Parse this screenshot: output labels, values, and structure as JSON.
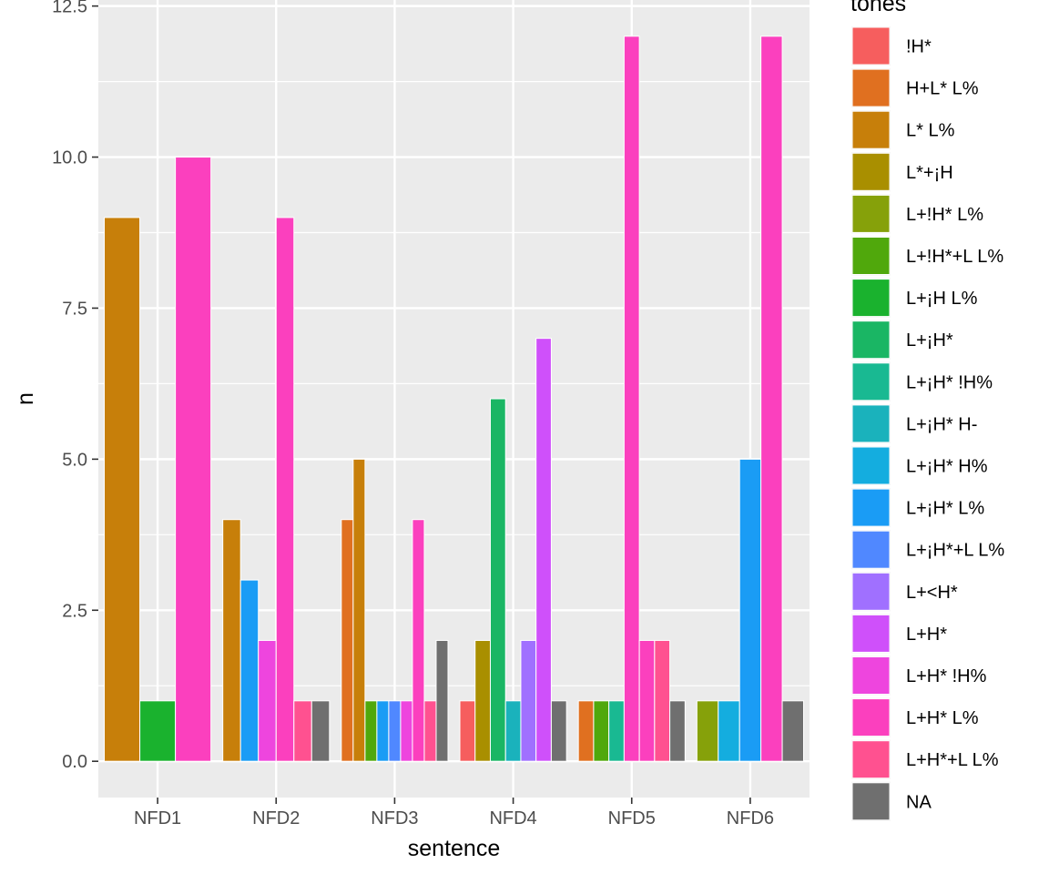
{
  "chart_data": {
    "type": "bar",
    "xlabel": "sentence",
    "ylabel": "n",
    "ylim": [
      -0.6,
      12.6
    ],
    "yticks": [
      0,
      2.5,
      5,
      7.5,
      10,
      12.5
    ],
    "ytick_labels": [
      "0.0",
      "2.5",
      "5.0",
      "7.5",
      "10.0",
      "12.5"
    ],
    "grid": true,
    "legend": {
      "title": "tones",
      "placement": "right",
      "entries": [
        {
          "name": "!H*",
          "color": "#F8766D"
        },
        {
          "name": "H+L* L%",
          "color": "#E58700"
        },
        {
          "name": "L* L%",
          "color": "#C99800"
        },
        {
          "name": "L*+¡H",
          "color": "#A3A500"
        },
        {
          "name": "L+!H* L%",
          "color": "#6BB100"
        },
        {
          "name": "L+!H*+L L%",
          "color": "#00BA38"
        },
        {
          "name": "L+¡H L%",
          "color": "#00BF7D"
        },
        {
          "name": "L+¡H*",
          "color": "#00C0AF"
        },
        {
          "name": "L+¡H* !H%",
          "color": "#00BCD8"
        },
        {
          "name": "L+¡H* H-",
          "color": "#00B0F6"
        },
        {
          "name": "L+¡H* H%",
          "color": "#619CFF"
        },
        {
          "name": "L+¡H* L%",
          "color": "#B983FF"
        },
        {
          "name": "L+¡H*+L L%",
          "color": "#E76BF3"
        },
        {
          "name": "L+<H*",
          "color": "#FD61D1"
        },
        {
          "name": "L+H*",
          "color": "#FF67A4"
        },
        {
          "name": "L+H* !H%",
          "color": "#FF6C91"
        },
        {
          "name": "L+H* L%",
          "color": "#FF7A7A"
        },
        {
          "name": "L+H*+L L%",
          "color": "#E0529B"
        },
        {
          "name": "NA",
          "color": "#707070"
        }
      ]
    },
    "categories": [
      "NFD1",
      "NFD2",
      "NFD3",
      "NFD4",
      "NFD5",
      "NFD6"
    ],
    "groups": [
      {
        "category": "NFD1",
        "bars": [
          {
            "tone": "L* L%",
            "value": 9,
            "color": "#C77F0A"
          },
          {
            "tone": "L+¡H L%",
            "value": 1,
            "color": "#1AB22E"
          },
          {
            "tone": "L+H* L%",
            "value": 10,
            "color": "#FB40BE"
          }
        ]
      },
      {
        "category": "NFD2",
        "bars": [
          {
            "tone": "L* L%",
            "value": 4,
            "color": "#C77F0A"
          },
          {
            "tone": "L+¡H* L%",
            "value": 3,
            "color": "#1A9CF5"
          },
          {
            "tone": "L+H* !H%",
            "value": 2,
            "color": "#EE45DE"
          },
          {
            "tone": "L+H* L%",
            "value": 9,
            "color": "#FB40BE"
          },
          {
            "tone": "L+H*+L L%",
            "value": 1,
            "color": "#FF5190"
          },
          {
            "tone": "NA",
            "value": 1,
            "color": "#6F6F6F"
          }
        ]
      },
      {
        "category": "NFD3",
        "bars": [
          {
            "tone": "H+L* L%",
            "value": 4,
            "color": "#E07020"
          },
          {
            "tone": "L* L%",
            "value": 5,
            "color": "#C77F0A"
          },
          {
            "tone": "L+!H*+L L%",
            "value": 1,
            "color": "#50A80C"
          },
          {
            "tone": "L+¡H* L%",
            "value": 1,
            "color": "#1A9CF5"
          },
          {
            "tone": "L+¡H*+L L%",
            "value": 1,
            "color": "#5088FF"
          },
          {
            "tone": "L+H* !H%",
            "value": 1,
            "color": "#EE45DE"
          },
          {
            "tone": "L+H* L%",
            "value": 4,
            "color": "#FB40BE"
          },
          {
            "tone": "L+H*+L L%",
            "value": 1,
            "color": "#FF5190"
          },
          {
            "tone": "NA",
            "value": 2,
            "color": "#6F6F6F"
          }
        ]
      },
      {
        "category": "NFD4",
        "bars": [
          {
            "tone": "!H*",
            "value": 1,
            "color": "#F65E5E"
          },
          {
            "tone": "L*+¡H",
            "value": 2,
            "color": "#A98F00"
          },
          {
            "tone": "L+¡H*",
            "value": 6,
            "color": "#1AB664"
          },
          {
            "tone": "L+¡H* H-",
            "value": 1,
            "color": "#1AB2BC"
          },
          {
            "tone": "L+<H*",
            "value": 2,
            "color": "#A070FF"
          },
          {
            "tone": "L+H*",
            "value": 7,
            "color": "#CF50FA"
          },
          {
            "tone": "NA",
            "value": 1,
            "color": "#6F6F6F"
          }
        ]
      },
      {
        "category": "NFD5",
        "bars": [
          {
            "tone": "H+L* L%",
            "value": 1,
            "color": "#E07020"
          },
          {
            "tone": "L+!H*+L L%",
            "value": 1,
            "color": "#50A80C"
          },
          {
            "tone": "L+¡H* !H%",
            "value": 1,
            "color": "#19B992"
          },
          {
            "tone": "L+H* L%",
            "value": 12,
            "color": "#FB40BE"
          },
          {
            "tone": "L+H* L%",
            "value": 2,
            "color": "#FB40BE"
          },
          {
            "tone": "L+H*+L L%",
            "value": 2,
            "color": "#FF5190"
          },
          {
            "tone": "NA",
            "value": 1,
            "color": "#6F6F6F"
          }
        ]
      },
      {
        "category": "NFD6",
        "bars": [
          {
            "tone": "L+!H* L%",
            "value": 1,
            "color": "#86A10A"
          },
          {
            "tone": "L+¡H* H%",
            "value": 1,
            "color": "#14ADDF"
          },
          {
            "tone": "L+¡H* L%",
            "value": 5,
            "color": "#1A9CF5"
          },
          {
            "tone": "L+H* L%",
            "value": 12,
            "color": "#FB40BE"
          },
          {
            "tone": "NA",
            "value": 1,
            "color": "#6F6F6F"
          }
        ]
      }
    ]
  },
  "legend_colors": [
    "#F65E5E",
    "#E07020",
    "#C77F0A",
    "#A98F00",
    "#86A10A",
    "#50A80C",
    "#1AB22E",
    "#1AB664",
    "#19B992",
    "#1AB2BC",
    "#14ADDF",
    "#1A9CF5",
    "#5088FF",
    "#A070FF",
    "#CF50FA",
    "#EE45DE",
    "#FB40BE",
    "#FF5190",
    "#6F6F6F"
  ]
}
